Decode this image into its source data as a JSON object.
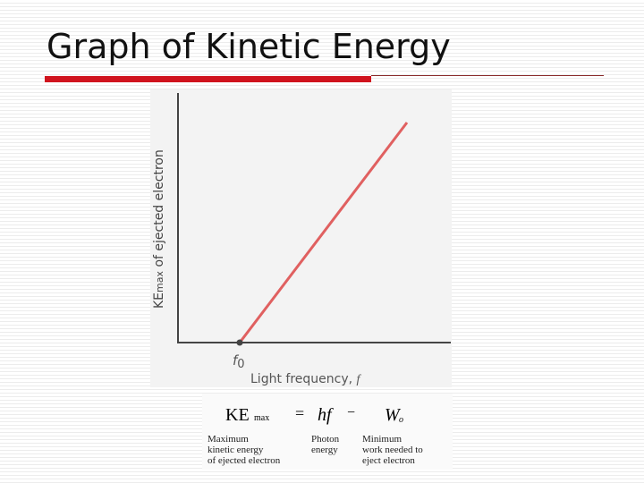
{
  "title": "Graph of Kinetic Energy",
  "graph": {
    "y_axis_label": {
      "main": "KE",
      "subscript": "max",
      "rest": " of ejected electron"
    },
    "threshold": {
      "main": "f",
      "subscript": "0"
    },
    "x_axis_label": {
      "main": "Light frequency, ",
      "symbol": "f"
    }
  },
  "equation": {
    "ke": "KE",
    "ke_sub": "max",
    "equals": "=",
    "hf": "hf",
    "minus": "−",
    "w": "W",
    "w_sub": "o"
  },
  "captions": [
    [
      "Maximum",
      "kinetic energy",
      "of ejected electron"
    ],
    [
      "Photon",
      "energy"
    ],
    [
      "Minimum",
      "work needed to",
      "eject electron"
    ]
  ]
}
